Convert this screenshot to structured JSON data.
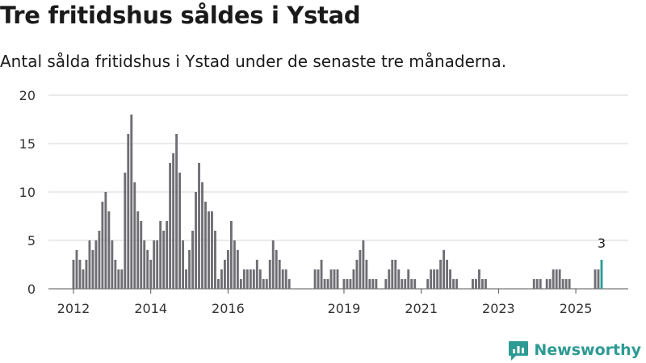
{
  "header": {
    "title": "Tre fritidshus såldes i Ystad",
    "subtitle": "Antal sålda fritidshus i Ystad under de senaste tre månaderna."
  },
  "branding": {
    "name": "Newsworthy",
    "color": "#2d9a93"
  },
  "chart_data": {
    "type": "bar",
    "x_tick_labels": [
      "2012",
      "2014",
      "2016",
      "2019",
      "2021",
      "2023",
      "2025"
    ],
    "y_ticks": [
      0,
      5,
      10,
      15,
      20
    ],
    "ylim": [
      0,
      20
    ],
    "grid": true,
    "bar_color": "#6f6e74",
    "highlight_color": "#2a9d96",
    "highlight_label": "3",
    "series": [
      {
        "values": [
          3,
          4,
          3,
          2,
          3,
          5,
          4,
          5,
          6,
          9,
          10,
          8,
          5,
          3,
          2,
          2,
          12,
          16,
          18,
          11,
          8,
          7,
          5,
          4,
          3,
          5,
          5,
          7,
          6,
          7,
          13,
          14,
          16,
          12,
          5,
          2,
          4,
          6,
          10,
          13,
          11,
          9,
          8,
          8,
          6,
          1,
          2,
          3,
          4,
          7,
          5,
          4,
          1,
          2,
          2,
          2,
          2,
          3,
          2,
          1,
          1,
          3,
          5,
          4,
          3,
          2,
          2,
          1,
          null,
          null,
          null,
          null,
          null,
          null,
          null,
          2,
          2,
          3,
          1,
          1,
          2,
          2,
          2,
          null,
          1,
          1,
          1,
          2,
          3,
          4,
          5,
          3,
          1,
          1,
          1,
          null,
          null,
          1,
          2,
          3,
          3,
          2,
          1,
          1,
          2,
          1,
          1,
          null,
          null,
          null,
          1,
          2,
          2,
          2,
          3,
          4,
          3,
          2,
          1,
          1,
          null,
          null,
          null,
          null,
          1,
          1,
          2,
          1,
          1,
          null,
          null,
          null,
          null,
          null,
          null,
          null,
          null,
          null,
          null,
          null,
          null,
          null,
          null,
          1,
          1,
          1,
          null,
          1,
          1,
          2,
          2,
          2,
          1,
          1,
          1,
          null,
          null,
          null,
          null,
          null,
          null,
          null,
          2,
          2,
          3
        ]
      }
    ]
  }
}
